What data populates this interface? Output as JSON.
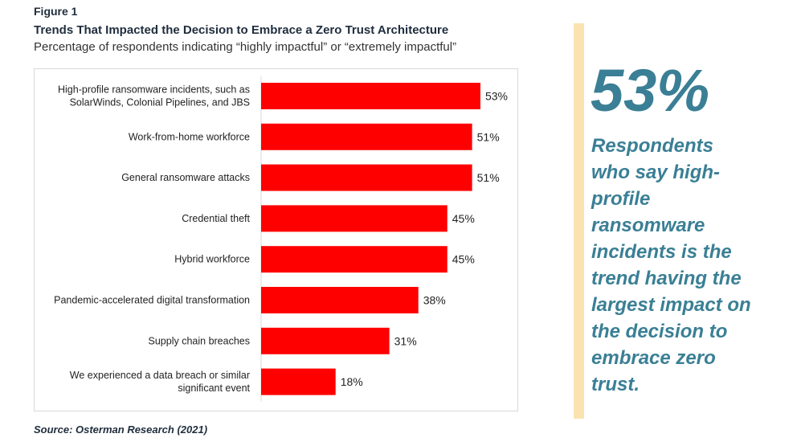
{
  "figure": {
    "label": "Figure 1",
    "title": "Trends That Impacted the Decision to Embrace a Zero Trust Architecture",
    "subtitle": "Percentage of respondents indicating “highly impactful” or “extremely impactful”"
  },
  "source": "Source: Osterman Research (2021)",
  "callout": {
    "number": "53%",
    "text": "Respondents who say high-profile ransomware incidents is the trend having the largest impact on the decision to embrace zero trust."
  },
  "colors": {
    "bar": "#ff0000",
    "accent_text": "#3a7f95",
    "divider": "#fbe3b0"
  },
  "chart_data": {
    "type": "bar",
    "orientation": "horizontal",
    "title": "Trends That Impacted the Decision to Embrace a Zero Trust Architecture",
    "subtitle": "Percentage of respondents indicating “highly impactful” or “extremely impactful”",
    "xlabel": "",
    "ylabel": "",
    "unit": "%",
    "xlim": [
      0,
      60
    ],
    "grid": false,
    "categories": [
      [
        "High-profile ransomware incidents, such as",
        "SolarWinds, Colonial Pipelines, and JBS"
      ],
      [
        "Work-from-home workforce"
      ],
      [
        "General ransomware attacks"
      ],
      [
        "Credential theft"
      ],
      [
        "Hybrid workforce"
      ],
      [
        "Pandemic-accelerated digital transformation"
      ],
      [
        "Supply chain breaches"
      ],
      [
        "We experienced a data breach or similar",
        "significant event"
      ]
    ],
    "values": [
      53,
      51,
      51,
      45,
      45,
      38,
      31,
      18
    ],
    "data_labels": [
      "53%",
      "51%",
      "51%",
      "45%",
      "45%",
      "38%",
      "31%",
      "18%"
    ]
  }
}
